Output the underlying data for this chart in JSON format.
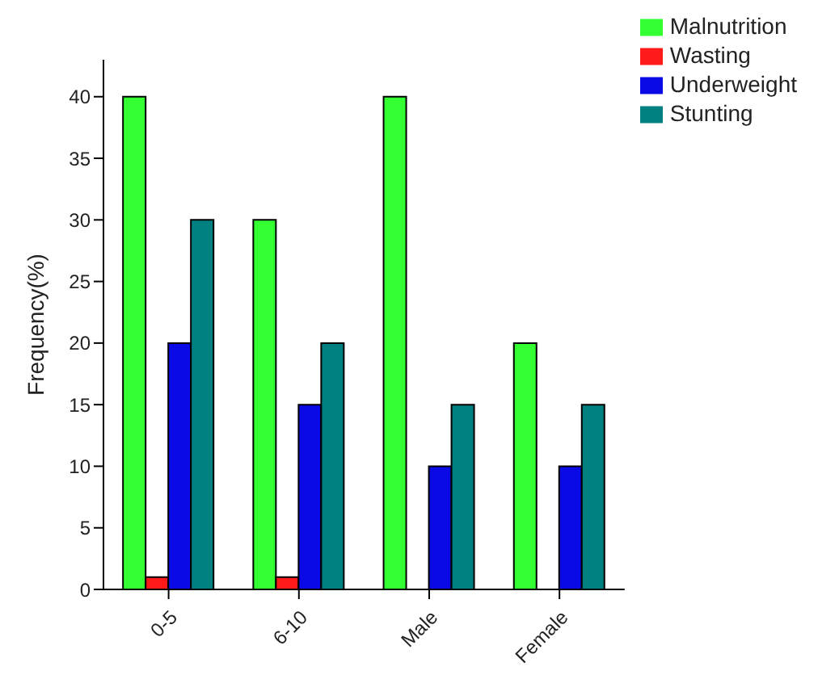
{
  "chart_data": {
    "type": "bar",
    "ylabel": "Frequency(%)",
    "categories": [
      "0-5",
      "6-10",
      "Male",
      "Female"
    ],
    "series": [
      {
        "name": "Malnutrition",
        "color": "#33ff33",
        "values": [
          40,
          30,
          40,
          20
        ]
      },
      {
        "name": "Wasting",
        "color": "#ff1a1a",
        "values": [
          1,
          1,
          0,
          0
        ]
      },
      {
        "name": "Underweight",
        "color": "#0a0ae6",
        "values": [
          20,
          15,
          10,
          10
        ]
      },
      {
        "name": "Stunting",
        "color": "#008080",
        "values": [
          30,
          20,
          15,
          15
        ]
      }
    ],
    "ylim": [
      0,
      43
    ],
    "yticks": [
      0,
      5,
      10,
      15,
      20,
      25,
      30,
      35,
      40
    ],
    "grid": false,
    "legend": "top right"
  }
}
